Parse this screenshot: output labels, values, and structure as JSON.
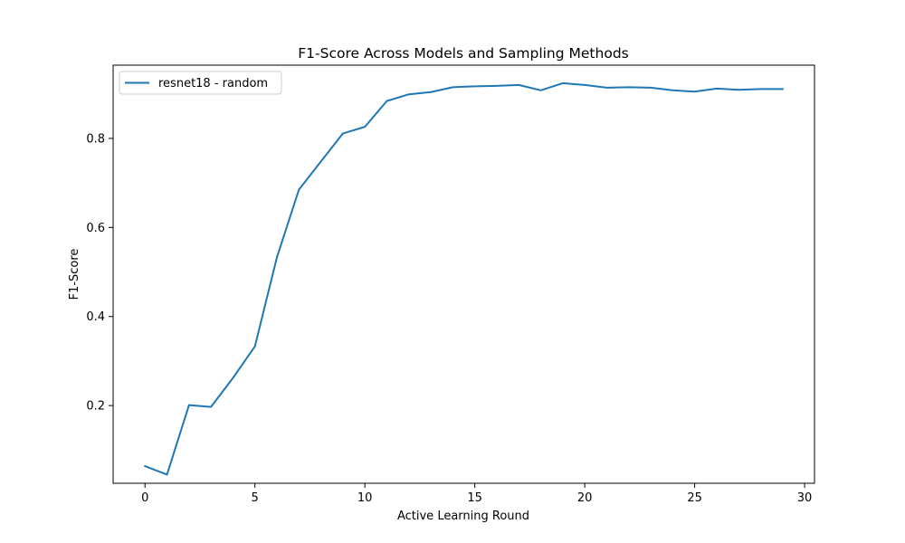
{
  "chart_data": {
    "type": "line",
    "title": "F1-Score Across Models and Sampling Methods",
    "xlabel": "Active Learning Round",
    "ylabel": "F1-Score",
    "xlim": [
      -1.45,
      30.45
    ],
    "ylim": [
      0.0255,
      0.9645
    ],
    "xticks": [
      0,
      5,
      10,
      15,
      20,
      25,
      30
    ],
    "yticks": [
      0.2,
      0.4,
      0.6,
      0.8
    ],
    "xtick_labels": [
      "0",
      "5",
      "10",
      "15",
      "20",
      "25",
      "30"
    ],
    "ytick_labels": [
      "0.2",
      "0.4",
      "0.6",
      "0.8"
    ],
    "grid": false,
    "legend_position": "upper-left",
    "series": [
      {
        "name": "resnet18 - random",
        "color": "#1f77b4",
        "x": [
          0,
          1,
          2,
          3,
          4,
          5,
          6,
          7,
          8,
          9,
          10,
          11,
          12,
          13,
          14,
          15,
          16,
          17,
          18,
          19,
          20,
          21,
          22,
          23,
          24,
          25,
          26,
          27,
          28,
          29
        ],
        "values": [
          0.064,
          0.045,
          0.201,
          0.197,
          0.262,
          0.333,
          0.533,
          0.685,
          0.748,
          0.811,
          0.826,
          0.884,
          0.899,
          0.904,
          0.915,
          0.917,
          0.918,
          0.92,
          0.908,
          0.924,
          0.92,
          0.914,
          0.915,
          0.914,
          0.908,
          0.905,
          0.912,
          0.909,
          0.911,
          0.911
        ]
      }
    ]
  }
}
